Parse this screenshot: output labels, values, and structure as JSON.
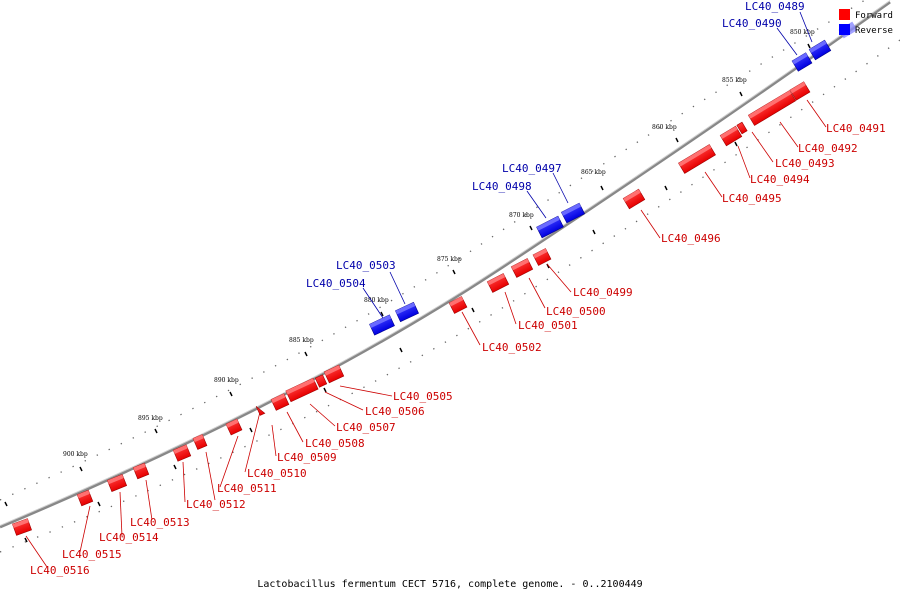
{
  "title": "Lactobacillus fermentum CECT 5716, complete genome. - 0..2100449",
  "legend": [
    {
      "label": "Forward",
      "color": "#ff0000"
    },
    {
      "label": "Reverse",
      "color": "#0000ff"
    }
  ],
  "colors": {
    "forward": "#ff0000",
    "forward_label": "#cc0000",
    "reverse": "#0000ff",
    "reverse_label": "#0000aa",
    "backbone": "#777777"
  },
  "ticks": [
    "850 kbp",
    "855 kbp",
    "860 kbp",
    "865 kbp",
    "870 kbp",
    "875 kbp",
    "880 kbp",
    "885 kbp",
    "890 kbp",
    "895 kbp",
    "900 kbp"
  ],
  "genes": [
    {
      "id": "LC40_0489",
      "strand": "reverse"
    },
    {
      "id": "LC40_0490",
      "strand": "reverse"
    },
    {
      "id": "LC40_0491",
      "strand": "forward"
    },
    {
      "id": "LC40_0492",
      "strand": "forward"
    },
    {
      "id": "LC40_0493",
      "strand": "forward"
    },
    {
      "id": "LC40_0494",
      "strand": "forward"
    },
    {
      "id": "LC40_0495",
      "strand": "forward"
    },
    {
      "id": "LC40_0496",
      "strand": "forward"
    },
    {
      "id": "LC40_0497",
      "strand": "reverse"
    },
    {
      "id": "LC40_0498",
      "strand": "reverse"
    },
    {
      "id": "LC40_0499",
      "strand": "forward"
    },
    {
      "id": "LC40_0500",
      "strand": "forward"
    },
    {
      "id": "LC40_0501",
      "strand": "forward"
    },
    {
      "id": "LC40_0502",
      "strand": "forward"
    },
    {
      "id": "LC40_0503",
      "strand": "reverse"
    },
    {
      "id": "LC40_0504",
      "strand": "reverse"
    },
    {
      "id": "LC40_0505",
      "strand": "forward"
    },
    {
      "id": "LC40_0506",
      "strand": "forward"
    },
    {
      "id": "LC40_0507",
      "strand": "forward"
    },
    {
      "id": "LC40_0508",
      "strand": "forward"
    },
    {
      "id": "LC40_0509",
      "strand": "forward"
    },
    {
      "id": "LC40_0510",
      "strand": "forward"
    },
    {
      "id": "LC40_0511",
      "strand": "forward"
    },
    {
      "id": "LC40_0512",
      "strand": "forward"
    },
    {
      "id": "LC40_0513",
      "strand": "forward"
    },
    {
      "id": "LC40_0514",
      "strand": "forward"
    },
    {
      "id": "LC40_0515",
      "strand": "forward"
    },
    {
      "id": "LC40_0516",
      "strand": "forward"
    }
  ]
}
